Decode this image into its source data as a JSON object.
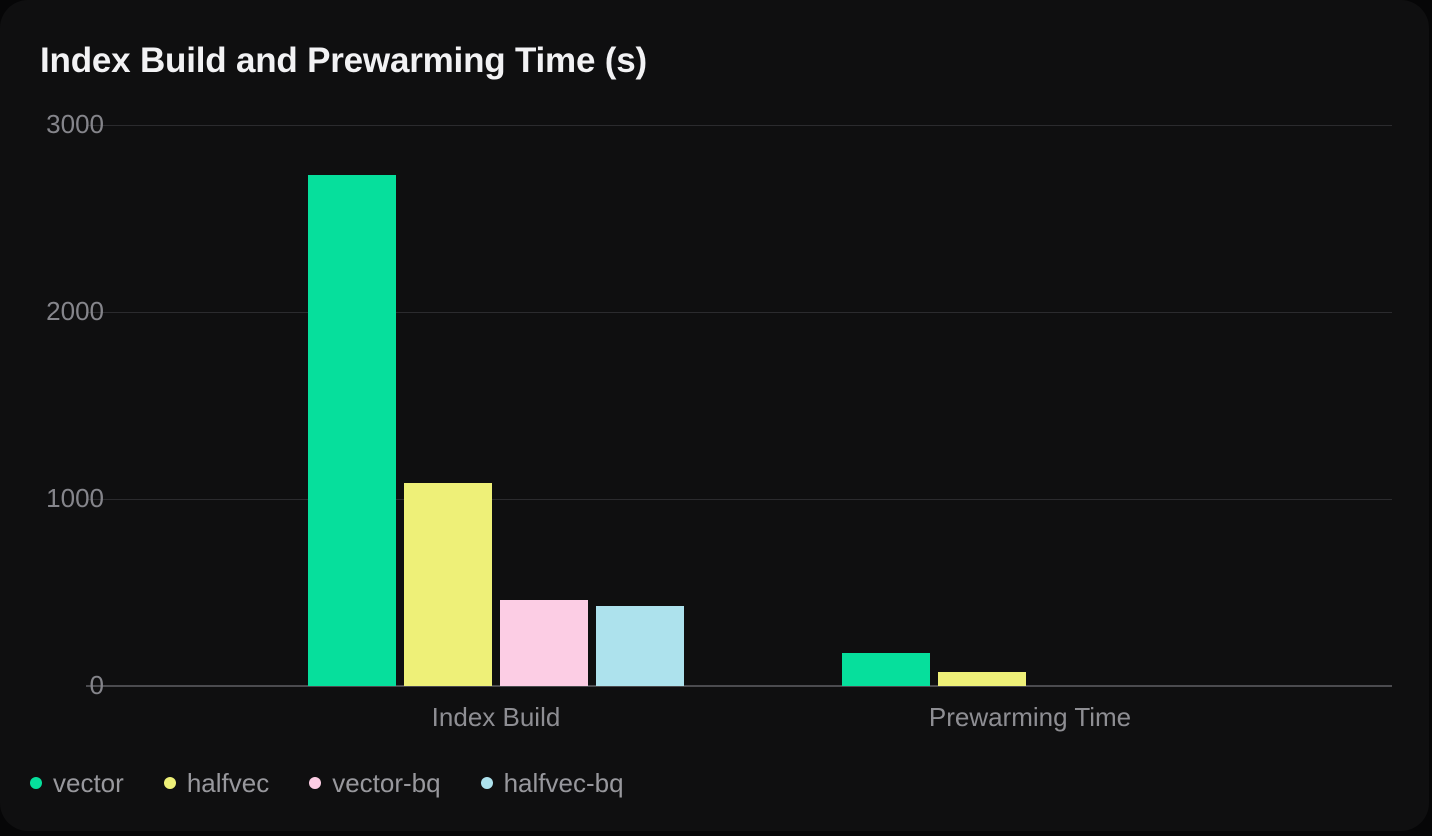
{
  "page": {
    "background_color": "#060607",
    "card_background_color": "#0f0f10"
  },
  "chart_data": {
    "type": "bar",
    "title": "Index Build and Prewarming Time (s)",
    "unit": "s",
    "categories": [
      "Index Build",
      "Prewarming Time"
    ],
    "series": [
      {
        "name": "vector",
        "color": "#06df9c",
        "values": [
          2730,
          175
        ]
      },
      {
        "name": "halfvec",
        "color": "#eef078",
        "values": [
          1085,
          75
        ]
      },
      {
        "name": "vector-bq",
        "color": "#fccde4",
        "values": [
          460,
          0
        ]
      },
      {
        "name": "halfvec-bq",
        "color": "#ade2ed",
        "values": [
          430,
          0
        ]
      }
    ],
    "ylim": [
      0,
      3000
    ],
    "yticks": [
      0,
      1000,
      2000,
      3000
    ],
    "xlabel": "",
    "ylabel": "",
    "grid": "horizontal-only",
    "legend_position": "bottom-left",
    "background": "dark"
  }
}
